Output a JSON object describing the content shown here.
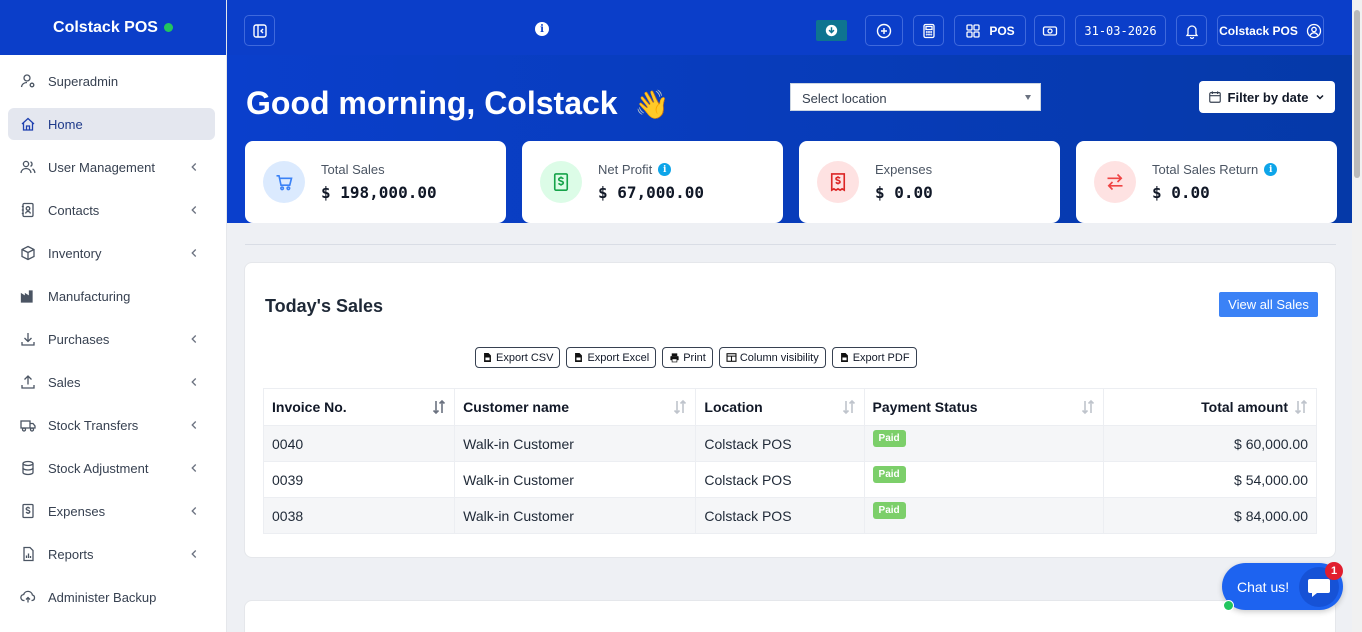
{
  "brand": {
    "name": "Colstack POS",
    "status_color": "#22c55e"
  },
  "sidebar": {
    "items": [
      {
        "label": "Superadmin",
        "icon": "user-gear-icon",
        "chevron": false,
        "active": false
      },
      {
        "label": "Home",
        "icon": "home-icon",
        "chevron": false,
        "active": true
      },
      {
        "label": "User Management",
        "icon": "users-icon",
        "chevron": true,
        "active": false
      },
      {
        "label": "Contacts",
        "icon": "address-book-icon",
        "chevron": true,
        "active": false
      },
      {
        "label": "Inventory",
        "icon": "box-icon",
        "chevron": true,
        "active": false
      },
      {
        "label": "Manufacturing",
        "icon": "industry-icon",
        "chevron": false,
        "active": false
      },
      {
        "label": "Purchases",
        "icon": "download-arrow-icon",
        "chevron": true,
        "active": false
      },
      {
        "label": "Sales",
        "icon": "upload-arrow-icon",
        "chevron": true,
        "active": false
      },
      {
        "label": "Stock Transfers",
        "icon": "truck-icon",
        "chevron": true,
        "active": false
      },
      {
        "label": "Stock Adjustment",
        "icon": "database-icon",
        "chevron": true,
        "active": false
      },
      {
        "label": "Expenses",
        "icon": "dollar-file-icon",
        "chevron": true,
        "active": false
      },
      {
        "label": "Reports",
        "icon": "chart-file-icon",
        "chevron": true,
        "active": false
      },
      {
        "label": "Administer Backup",
        "icon": "cloud-sync-icon",
        "chevron": false,
        "active": false
      }
    ]
  },
  "topbar": {
    "pos_label": "POS",
    "date": "31-03-2026",
    "user_label": "Colstack POS"
  },
  "hero": {
    "greeting": "Good morning, Colstack",
    "greeting_emoji": "👋",
    "location_placeholder": "Select location",
    "filter_label": "Filter by date"
  },
  "stats": [
    {
      "label": "Total Sales",
      "value": "$ 198,000.00",
      "info": false,
      "icon": "cart-icon",
      "color": "#3b82f6",
      "bg": "#dbeafe"
    },
    {
      "label": "Net Profit",
      "value": "$ 67,000.00",
      "info": true,
      "icon": "dollar-doc-icon",
      "color": "#16a34a",
      "bg": "#dcfce7"
    },
    {
      "label": "Expenses",
      "value": "$ 0.00",
      "info": false,
      "icon": "receipt-icon",
      "color": "#dc2626",
      "bg": "#fee2e2"
    },
    {
      "label": "Total Sales Return",
      "value": "$ 0.00",
      "info": true,
      "icon": "exchange-icon",
      "color": "#ef4444",
      "bg": "#fee2e2"
    }
  ],
  "sales": {
    "title": "Today's Sales",
    "view_all": "View all Sales",
    "exports": [
      "Export CSV",
      "Export Excel",
      "Print",
      "Column visibility",
      "Export PDF"
    ],
    "columns": [
      "Invoice No.",
      "Customer name",
      "Location",
      "Payment Status",
      "Total amount"
    ],
    "rows": [
      [
        "0040",
        "Walk-in Customer",
        "Colstack POS",
        "Paid",
        "$ 60,000.00"
      ],
      [
        "0039",
        "Walk-in Customer",
        "Colstack POS",
        "Paid",
        "$ 54,000.00"
      ],
      [
        "0038",
        "Walk-in Customer",
        "Colstack POS",
        "Paid",
        "$ 84,000.00"
      ]
    ]
  },
  "chat": {
    "label": "Chat us!",
    "unread": "1"
  }
}
